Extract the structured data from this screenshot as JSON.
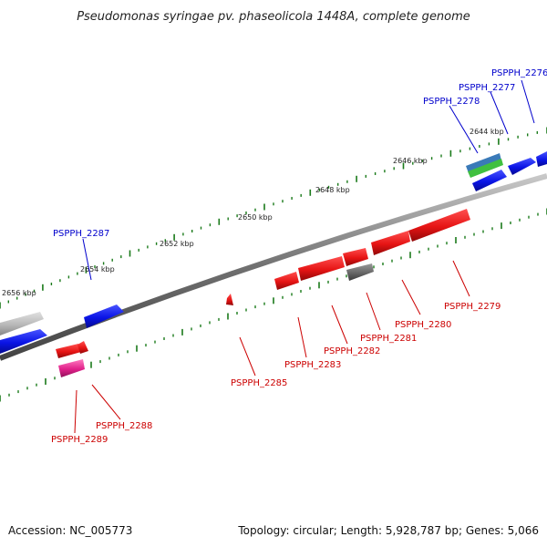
{
  "title": "Pseudomonas syringae pv. phaseolicola 1448A, complete genome",
  "footer": {
    "accession": "Accession: NC_005773",
    "summary": "Topology: circular; Length: 5,928,787 bp; Genes: 5,066"
  },
  "scale_labels": [
    "2644 kbp",
    "2646 kbp",
    "2648 kbp",
    "2650 kbp",
    "2652 kbp",
    "2654 kbp",
    "2656 kbp"
  ],
  "genes": [
    {
      "id": "g2276",
      "label": "PSPPH_2276",
      "color": "#0000cc"
    },
    {
      "id": "g2277",
      "label": "PSPPH_2277",
      "color": "#0000cc"
    },
    {
      "id": "g2278",
      "label": "PSPPH_2278",
      "color": "#0000cc"
    },
    {
      "id": "g2279",
      "label": "PSPPH_2279",
      "color": "#cc0000"
    },
    {
      "id": "g2280",
      "label": "PSPPH_2280",
      "color": "#cc0000"
    },
    {
      "id": "g2281",
      "label": "PSPPH_2281",
      "color": "#cc0000"
    },
    {
      "id": "g2282",
      "label": "PSPPH_2282",
      "color": "#cc0000"
    },
    {
      "id": "g2283",
      "label": "PSPPH_2283",
      "color": "#cc0000"
    },
    {
      "id": "g2285",
      "label": "PSPPH_2285",
      "color": "#cc0000"
    },
    {
      "id": "g2287",
      "label": "PSPPH_2287",
      "color": "#0000cc"
    },
    {
      "id": "g2288",
      "label": "PSPPH_2288",
      "color": "#cc0000"
    },
    {
      "id": "g2289",
      "label": "PSPPH_2289",
      "color": "#cc0000"
    }
  ],
  "colors": {
    "forward_strand": "#0a14e6",
    "reverse_strand": "#e61414",
    "backbone": "#707070",
    "ticks": "#1a7a1a",
    "rna": "#e0208a",
    "pseudogene": "#666666"
  }
}
